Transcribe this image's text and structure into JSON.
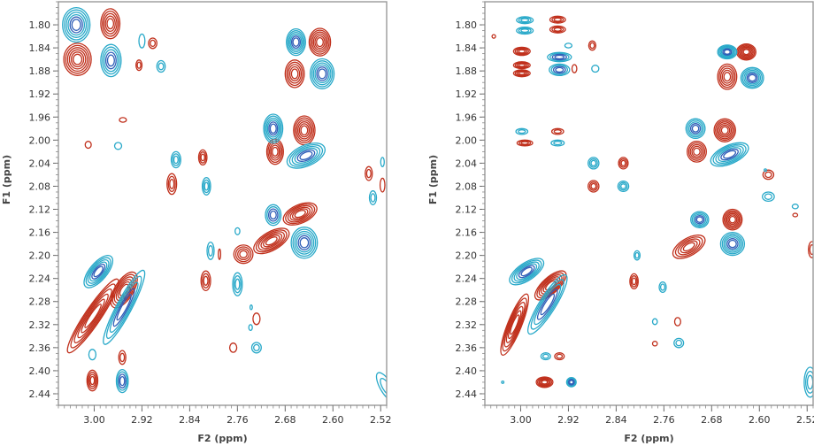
{
  "colors": {
    "positive": "#c0301c",
    "negative": "#29a9c9",
    "negative_dark": "#2f5fb8",
    "frame": "#999999",
    "text": "#333333"
  },
  "chart_data": [
    {
      "type": "contour",
      "xlabel": "F2 (ppm)",
      "ylabel": "F1 (ppm)",
      "xlim": [
        3.06,
        2.51
      ],
      "ylim": [
        1.76,
        2.46
      ],
      "x_ticks": [
        "3.00",
        "2.92",
        "2.84",
        "2.76",
        "2.68",
        "2.60",
        "2.52"
      ],
      "y_ticks": [
        "1.80",
        "1.84",
        "1.88",
        "1.92",
        "1.96",
        "2.00",
        "2.04",
        "2.08",
        "2.12",
        "2.16",
        "2.20",
        "2.24",
        "2.28",
        "2.32",
        "2.36",
        "2.40",
        "2.44"
      ],
      "series": [
        {
          "sign": "positive",
          "peaks": [
            {
              "x": 2.973,
              "y": 1.798,
              "w": 0.016,
              "h": 0.026,
              "n": 5
            },
            {
              "x": 3.028,
              "y": 1.86,
              "w": 0.023,
              "h": 0.028,
              "n": 6
            },
            {
              "x": 2.902,
              "y": 1.832,
              "w": 0.007,
              "h": 0.009,
              "n": 2
            },
            {
              "x": 2.925,
              "y": 1.87,
              "w": 0.005,
              "h": 0.009,
              "n": 2
            },
            {
              "x": 2.952,
              "y": 1.965,
              "w": 0.006,
              "h": 0.004,
              "n": 1
            },
            {
              "x": 3.01,
              "y": 2.008,
              "w": 0.005,
              "h": 0.006,
              "n": 1
            },
            {
              "x": 2.818,
              "y": 2.03,
              "w": 0.007,
              "h": 0.013,
              "n": 3
            },
            {
              "x": 2.87,
              "y": 2.076,
              "w": 0.008,
              "h": 0.018,
              "n": 3
            },
            {
              "x": 2.622,
              "y": 1.83,
              "w": 0.018,
              "h": 0.024,
              "n": 6
            },
            {
              "x": 2.664,
              "y": 1.885,
              "w": 0.016,
              "h": 0.024,
              "n": 5
            },
            {
              "x": 2.648,
              "y": 1.983,
              "w": 0.018,
              "h": 0.025,
              "n": 6
            },
            {
              "x": 2.697,
              "y": 2.02,
              "w": 0.014,
              "h": 0.022,
              "n": 5
            },
            {
              "x": 2.54,
              "y": 2.058,
              "w": 0.006,
              "h": 0.012,
              "n": 2
            },
            {
              "x": 2.517,
              "y": 2.078,
              "w": 0.004,
              "h": 0.012,
              "n": 1
            },
            {
              "x": 2.655,
              "y": 2.128,
              "w": 0.03,
              "h": 0.016,
              "n": 6,
              "rot": -24
            },
            {
              "x": 2.703,
              "y": 2.175,
              "w": 0.033,
              "h": 0.016,
              "n": 6,
              "rot": -30
            },
            {
              "x": 2.75,
              "y": 2.198,
              "w": 0.016,
              "h": 0.016,
              "n": 4
            },
            {
              "x": 2.813,
              "y": 2.244,
              "w": 0.008,
              "h": 0.017,
              "n": 3
            },
            {
              "x": 2.79,
              "y": 2.198,
              "w": 0.002,
              "h": 0.009,
              "n": 1
            },
            {
              "x": 2.95,
              "y": 2.26,
              "w": 0.034,
              "h": 0.016,
              "n": 6,
              "rot": -58
            },
            {
              "x": 3.002,
              "y": 2.305,
              "w": 0.074,
              "h": 0.014,
              "n": 6,
              "rot": -56
            },
            {
              "x": 2.953,
              "y": 2.377,
              "w": 0.006,
              "h": 0.012,
              "n": 2
            },
            {
              "x": 3.003,
              "y": 2.417,
              "w": 0.009,
              "h": 0.018,
              "n": 4
            },
            {
              "x": 2.728,
              "y": 2.31,
              "w": 0.006,
              "h": 0.01,
              "n": 1
            },
            {
              "x": 2.767,
              "y": 2.36,
              "w": 0.006,
              "h": 0.008,
              "n": 1
            }
          ]
        },
        {
          "sign": "negative",
          "peaks": [
            {
              "x": 3.03,
              "y": 1.8,
              "w": 0.023,
              "h": 0.03,
              "n": 6
            },
            {
              "x": 2.972,
              "y": 1.862,
              "w": 0.017,
              "h": 0.028,
              "n": 5
            },
            {
              "x": 2.92,
              "y": 1.828,
              "w": 0.005,
              "h": 0.012,
              "n": 1
            },
            {
              "x": 2.888,
              "y": 1.872,
              "w": 0.007,
              "h": 0.01,
              "n": 2
            },
            {
              "x": 2.96,
              "y": 2.01,
              "w": 0.006,
              "h": 0.006,
              "n": 1
            },
            {
              "x": 2.863,
              "y": 2.034,
              "w": 0.008,
              "h": 0.014,
              "n": 3
            },
            {
              "x": 2.812,
              "y": 2.08,
              "w": 0.007,
              "h": 0.015,
              "n": 3
            },
            {
              "x": 2.662,
              "y": 1.83,
              "w": 0.016,
              "h": 0.023,
              "n": 6
            },
            {
              "x": 2.618,
              "y": 1.885,
              "w": 0.02,
              "h": 0.026,
              "n": 6
            },
            {
              "x": 2.7,
              "y": 1.98,
              "w": 0.016,
              "h": 0.025,
              "n": 6
            },
            {
              "x": 2.645,
              "y": 2.027,
              "w": 0.034,
              "h": 0.018,
              "n": 6,
              "rot": -24
            },
            {
              "x": 2.533,
              "y": 2.1,
              "w": 0.006,
              "h": 0.012,
              "n": 2
            },
            {
              "x": 2.517,
              "y": 2.038,
              "w": 0.003,
              "h": 0.008,
              "n": 1
            },
            {
              "x": 2.7,
              "y": 2.13,
              "w": 0.013,
              "h": 0.018,
              "n": 4
            },
            {
              "x": 2.648,
              "y": 2.178,
              "w": 0.022,
              "h": 0.027,
              "n": 6
            },
            {
              "x": 2.76,
              "y": 2.158,
              "w": 0.004,
              "h": 0.006,
              "n": 1
            },
            {
              "x": 2.805,
              "y": 2.192,
              "w": 0.006,
              "h": 0.015,
              "n": 2
            },
            {
              "x": 2.76,
              "y": 2.25,
              "w": 0.008,
              "h": 0.02,
              "n": 3
            },
            {
              "x": 2.993,
              "y": 2.228,
              "w": 0.033,
              "h": 0.015,
              "n": 6,
              "rot": -50
            },
            {
              "x": 2.95,
              "y": 2.29,
              "w": 0.07,
              "h": 0.013,
              "n": 5,
              "rot": -62
            },
            {
              "x": 3.003,
              "y": 2.372,
              "w": 0.006,
              "h": 0.009,
              "n": 1
            },
            {
              "x": 2.953,
              "y": 2.418,
              "w": 0.01,
              "h": 0.02,
              "n": 4
            },
            {
              "x": 2.738,
              "y": 2.325,
              "w": 0.003,
              "h": 0.005,
              "n": 1
            },
            {
              "x": 2.737,
              "y": 2.29,
              "w": 0.002,
              "h": 0.004,
              "n": 1
            },
            {
              "x": 2.728,
              "y": 2.36,
              "w": 0.008,
              "h": 0.009,
              "n": 2
            },
            {
              "x": 2.511,
              "y": 2.428,
              "w": 0.01,
              "h": 0.028,
              "n": 2,
              "rot": -30
            }
          ]
        }
      ]
    },
    {
      "type": "contour",
      "xlabel": "F2 (ppm)",
      "ylabel": "F1 (ppm)",
      "xlim": [
        3.06,
        2.51
      ],
      "ylim": [
        1.76,
        2.46
      ],
      "x_ticks": [
        "3.00",
        "2.92",
        "2.84",
        "2.76",
        "2.68",
        "2.60",
        "2.52"
      ],
      "y_ticks": [
        "1.80",
        "1.84",
        "1.88",
        "1.92",
        "1.96",
        "2.00",
        "2.04",
        "2.08",
        "2.12",
        "2.16",
        "2.20",
        "2.24",
        "2.28",
        "2.32",
        "2.36",
        "2.40",
        "2.44"
      ],
      "series": [
        {
          "sign": "positive",
          "peaks": [
            {
              "x": 2.938,
              "y": 1.791,
              "w": 0.013,
              "h": 0.006,
              "n": 3
            },
            {
              "x": 2.938,
              "y": 1.808,
              "w": 0.013,
              "h": 0.006,
              "n": 3
            },
            {
              "x": 2.998,
              "y": 1.846,
              "w": 0.014,
              "h": 0.007,
              "n": 4
            },
            {
              "x": 2.998,
              "y": 1.87,
              "w": 0.014,
              "h": 0.006,
              "n": 4
            },
            {
              "x": 2.998,
              "y": 1.884,
              "w": 0.014,
              "h": 0.006,
              "n": 4
            },
            {
              "x": 2.88,
              "y": 1.836,
              "w": 0.006,
              "h": 0.008,
              "n": 2
            },
            {
              "x": 2.91,
              "y": 1.876,
              "w": 0.004,
              "h": 0.007,
              "n": 1
            },
            {
              "x": 3.045,
              "y": 1.82,
              "w": 0.003,
              "h": 0.003,
              "n": 1
            },
            {
              "x": 2.938,
              "y": 1.985,
              "w": 0.01,
              "h": 0.005,
              "n": 2
            },
            {
              "x": 2.993,
              "y": 2.005,
              "w": 0.013,
              "h": 0.005,
              "n": 3
            },
            {
              "x": 2.828,
              "y": 2.04,
              "w": 0.008,
              "h": 0.01,
              "n": 3
            },
            {
              "x": 2.878,
              "y": 2.08,
              "w": 0.009,
              "h": 0.01,
              "n": 3
            },
            {
              "x": 2.622,
              "y": 1.847,
              "w": 0.016,
              "h": 0.014,
              "n": 6
            },
            {
              "x": 2.654,
              "y": 1.89,
              "w": 0.016,
              "h": 0.022,
              "n": 5
            },
            {
              "x": 2.658,
              "y": 1.983,
              "w": 0.018,
              "h": 0.02,
              "n": 6
            },
            {
              "x": 2.705,
              "y": 2.02,
              "w": 0.016,
              "h": 0.018,
              "n": 5
            },
            {
              "x": 2.585,
              "y": 2.06,
              "w": 0.009,
              "h": 0.008,
              "n": 2
            },
            {
              "x": 2.54,
              "y": 2.13,
              "w": 0.004,
              "h": 0.003,
              "n": 1
            },
            {
              "x": 2.645,
              "y": 2.138,
              "w": 0.016,
              "h": 0.018,
              "n": 6
            },
            {
              "x": 2.718,
              "y": 2.185,
              "w": 0.03,
              "h": 0.015,
              "n": 5,
              "rot": -30
            },
            {
              "x": 2.81,
              "y": 2.245,
              "w": 0.007,
              "h": 0.013,
              "n": 3
            },
            {
              "x": 2.95,
              "y": 2.252,
              "w": 0.033,
              "h": 0.014,
              "n": 6,
              "rot": -42
            },
            {
              "x": 3.01,
              "y": 2.32,
              "w": 0.055,
              "h": 0.012,
              "n": 6,
              "rot": -68
            },
            {
              "x": 2.935,
              "y": 2.375,
              "w": 0.008,
              "h": 0.006,
              "n": 2
            },
            {
              "x": 2.96,
              "y": 2.42,
              "w": 0.014,
              "h": 0.009,
              "n": 5
            },
            {
              "x": 2.737,
              "y": 2.315,
              "w": 0.005,
              "h": 0.007,
              "n": 1
            },
            {
              "x": 2.775,
              "y": 2.353,
              "w": 0.004,
              "h": 0.004,
              "n": 1
            },
            {
              "x": 2.512,
              "y": 2.19,
              "w": 0.006,
              "h": 0.014,
              "n": 2
            }
          ]
        },
        {
          "sign": "negative",
          "peaks": [
            {
              "x": 2.993,
              "y": 1.792,
              "w": 0.014,
              "h": 0.006,
              "n": 3
            },
            {
              "x": 2.993,
              "y": 1.81,
              "w": 0.014,
              "h": 0.006,
              "n": 3
            },
            {
              "x": 2.935,
              "y": 1.856,
              "w": 0.02,
              "h": 0.008,
              "n": 4
            },
            {
              "x": 2.935,
              "y": 1.878,
              "w": 0.017,
              "h": 0.01,
              "n": 4
            },
            {
              "x": 2.92,
              "y": 1.836,
              "w": 0.006,
              "h": 0.004,
              "n": 1
            },
            {
              "x": 2.875,
              "y": 1.876,
              "w": 0.006,
              "h": 0.006,
              "n": 1
            },
            {
              "x": 2.998,
              "y": 1.985,
              "w": 0.01,
              "h": 0.005,
              "n": 2
            },
            {
              "x": 2.938,
              "y": 2.005,
              "w": 0.011,
              "h": 0.005,
              "n": 2
            },
            {
              "x": 2.878,
              "y": 2.04,
              "w": 0.009,
              "h": 0.01,
              "n": 3
            },
            {
              "x": 2.828,
              "y": 2.08,
              "w": 0.009,
              "h": 0.009,
              "n": 3
            },
            {
              "x": 2.654,
              "y": 1.847,
              "w": 0.016,
              "h": 0.012,
              "n": 6
            },
            {
              "x": 2.612,
              "y": 1.892,
              "w": 0.019,
              "h": 0.018,
              "n": 6
            },
            {
              "x": 2.707,
              "y": 1.98,
              "w": 0.016,
              "h": 0.017,
              "n": 5
            },
            {
              "x": 2.65,
              "y": 2.025,
              "w": 0.034,
              "h": 0.016,
              "n": 6,
              "rot": -24
            },
            {
              "x": 2.585,
              "y": 2.098,
              "w": 0.01,
              "h": 0.008,
              "n": 2
            },
            {
              "x": 2.59,
              "y": 2.052,
              "w": 0.002,
              "h": 0.002,
              "n": 1
            },
            {
              "x": 2.54,
              "y": 2.115,
              "w": 0.005,
              "h": 0.004,
              "n": 1
            },
            {
              "x": 2.7,
              "y": 2.138,
              "w": 0.015,
              "h": 0.014,
              "n": 5
            },
            {
              "x": 2.645,
              "y": 2.18,
              "w": 0.02,
              "h": 0.02,
              "n": 6
            },
            {
              "x": 2.805,
              "y": 2.2,
              "w": 0.005,
              "h": 0.008,
              "n": 2
            },
            {
              "x": 2.762,
              "y": 2.255,
              "w": 0.006,
              "h": 0.009,
              "n": 2
            },
            {
              "x": 2.99,
              "y": 2.228,
              "w": 0.033,
              "h": 0.015,
              "n": 6,
              "rot": -34
            },
            {
              "x": 2.955,
              "y": 2.285,
              "w": 0.058,
              "h": 0.014,
              "n": 5,
              "rot": -58
            },
            {
              "x": 2.958,
              "y": 2.375,
              "w": 0.008,
              "h": 0.006,
              "n": 2
            },
            {
              "x": 2.915,
              "y": 2.42,
              "w": 0.008,
              "h": 0.008,
              "n": 4
            },
            {
              "x": 2.735,
              "y": 2.352,
              "w": 0.008,
              "h": 0.008,
              "n": 2
            },
            {
              "x": 2.775,
              "y": 2.315,
              "w": 0.004,
              "h": 0.005,
              "n": 1
            },
            {
              "x": 3.03,
              "y": 2.42,
              "w": 0.002,
              "h": 0.002,
              "n": 1
            },
            {
              "x": 2.515,
              "y": 2.42,
              "w": 0.01,
              "h": 0.026,
              "n": 3
            }
          ]
        }
      ]
    }
  ]
}
